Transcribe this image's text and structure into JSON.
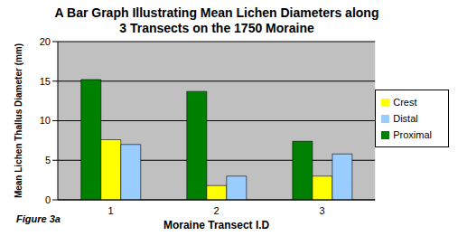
{
  "chart_data": {
    "type": "bar",
    "title": "A Bar Graph Illustrating Mean Lichen Diameters along 3 Transects on the 1750 Moraine",
    "x_label": "Moraine Transect I.D",
    "y_label": "Mean Lichen Thallus Diameter (mm)",
    "annotations": [
      "Figure 3a"
    ],
    "categories": [
      "1",
      "2",
      "3"
    ],
    "series": [
      {
        "name": "Proximal",
        "color": "#008000",
        "values": [
          15.2,
          13.7,
          7.4
        ]
      },
      {
        "name": "Crest",
        "color": "#ffff00",
        "values": [
          7.6,
          1.8,
          3.0
        ]
      },
      {
        "name": "Distal",
        "color": "#99ccff",
        "values": [
          7.0,
          3.0,
          5.8
        ]
      }
    ],
    "ylim": [
      0,
      20
    ],
    "yticks": [
      0,
      5,
      10,
      15,
      20
    ],
    "grid": true,
    "legend": "right"
  }
}
